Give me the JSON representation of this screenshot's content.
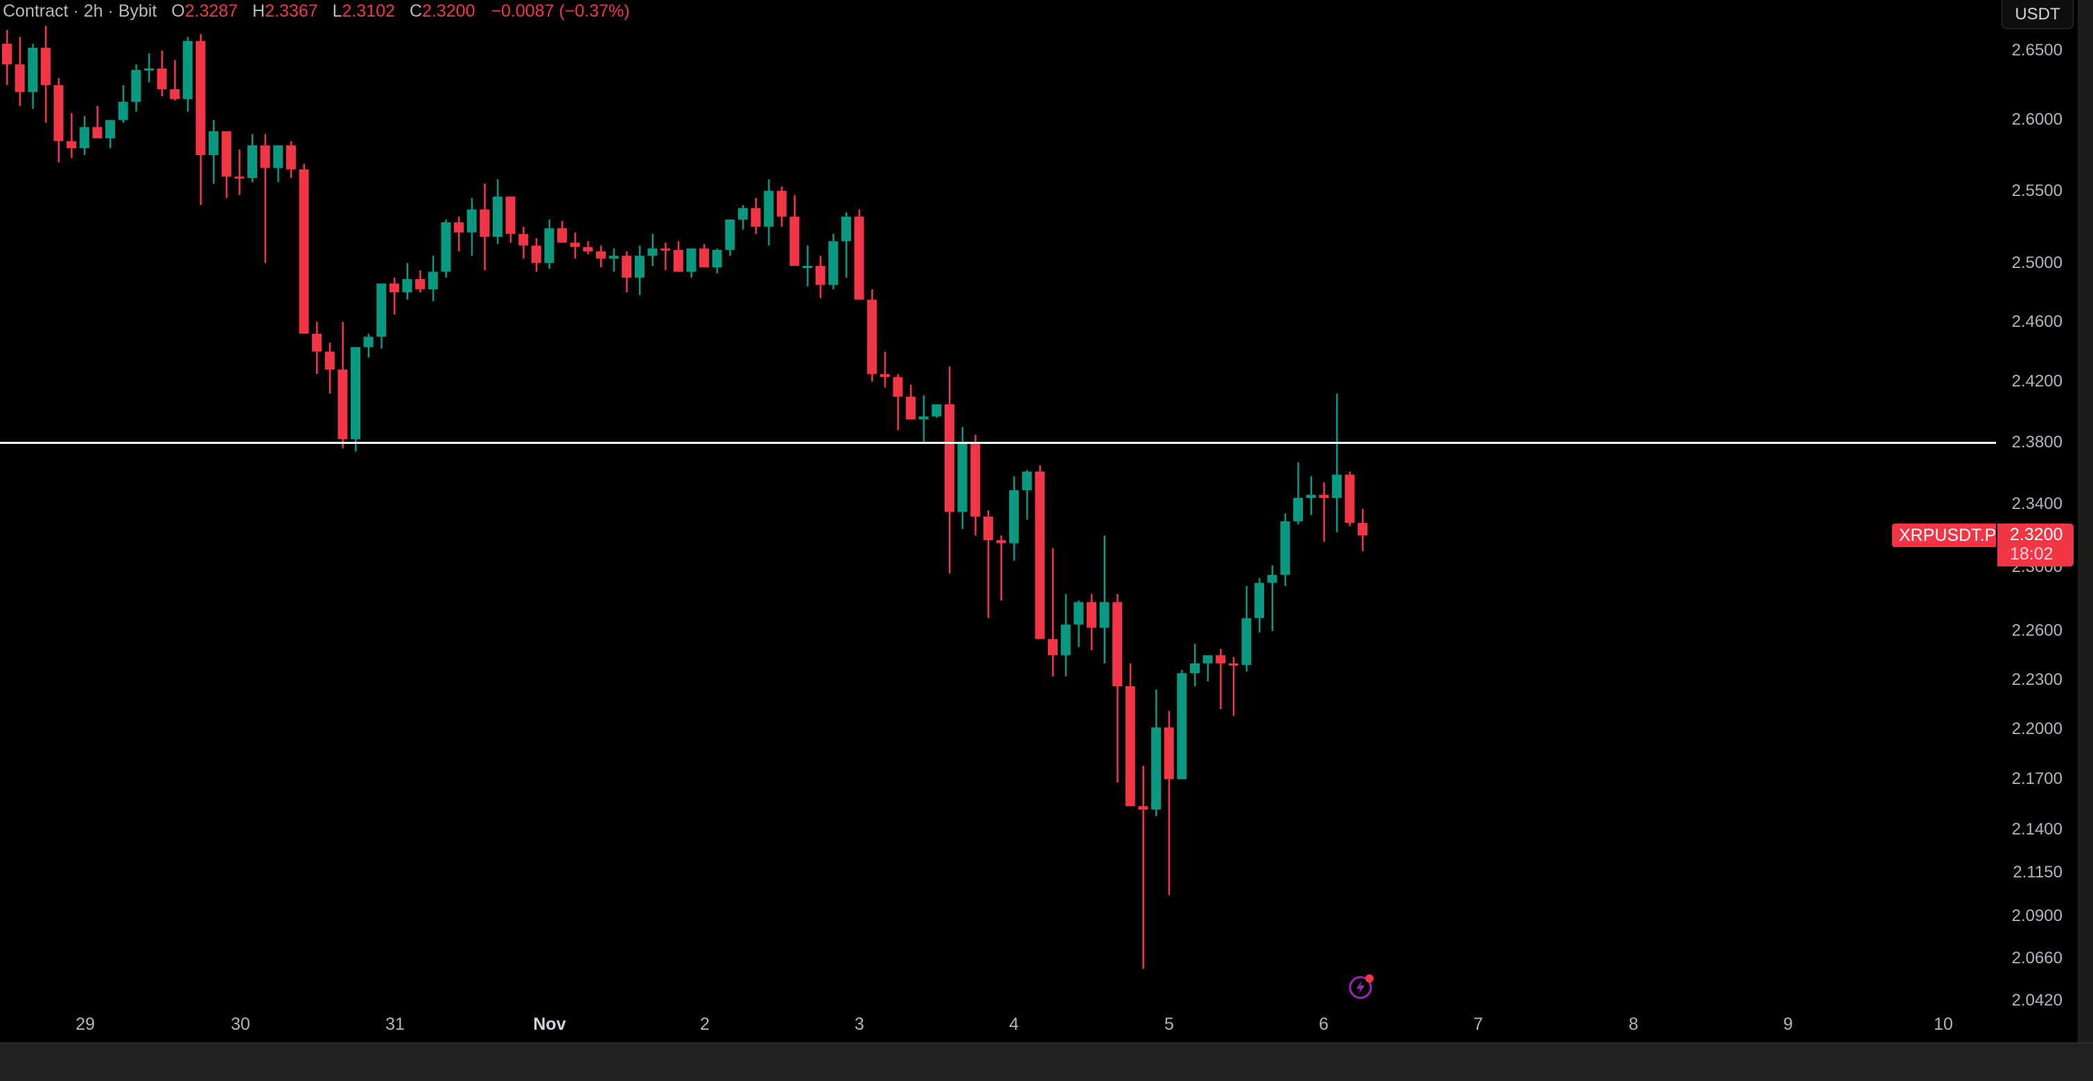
{
  "header": {
    "legend_prefix": "Contract · 2h · Bybit",
    "open_label": "O",
    "open": "2.3287",
    "high_label": "H",
    "high": "2.3367",
    "low_label": "L",
    "low": "2.3102",
    "close_label": "C",
    "close": "2.3200",
    "change": "−0.0087 (−0.37%)"
  },
  "currency_button": "USDT",
  "symbol_label": "XRPUSDT.P",
  "last_price": "2.3200",
  "countdown": "18:02",
  "horizontal_line_price": 2.38,
  "colors": {
    "up": "#089981",
    "down": "#f23645",
    "background": "#000000",
    "axis_text": "#b2b5be",
    "alert_icon": "#9c27b0",
    "hline": "#ffffff"
  },
  "icons": {
    "alert": "lightning-alert-icon"
  },
  "chart_data": {
    "type": "candlestick",
    "title": "XRPUSDT.P · 2h · Bybit",
    "symbol": "XRPUSDT.P",
    "interval": "2h",
    "y_scale": "log",
    "ylim": [
      2.042,
      2.665
    ],
    "y_ticks": [
      "2.6500",
      "2.6000",
      "2.5500",
      "2.5000",
      "2.4600",
      "2.4200",
      "2.3800",
      "2.3400",
      "2.3000",
      "2.2600",
      "2.2300",
      "2.2000",
      "2.1700",
      "2.1400",
      "2.1150",
      "2.0900",
      "2.0660",
      "2.0420"
    ],
    "x_ticks": [
      "29",
      "30",
      "31",
      "Nov",
      "2",
      "3",
      "4",
      "5",
      "6",
      "7",
      "8",
      "9",
      "10"
    ],
    "x_tick_positions": [
      123,
      347,
      570,
      793,
      1017,
      1240,
      1463,
      1687,
      1910,
      2133,
      2357,
      2580,
      2804
    ],
    "first_candle_x": 10,
    "candle_spacing": 18.63,
    "legend": [],
    "annotations": [
      {
        "type": "horizontal_line",
        "price": 2.38
      }
    ],
    "candles": [
      [
        2.655,
        2.665,
        2.625,
        2.64
      ],
      [
        2.64,
        2.66,
        2.61,
        2.62
      ],
      [
        2.62,
        2.655,
        2.608,
        2.652
      ],
      [
        2.652,
        2.668,
        2.598,
        2.625
      ],
      [
        2.625,
        2.63,
        2.57,
        2.585
      ],
      [
        2.585,
        2.605,
        2.573,
        2.58
      ],
      [
        2.58,
        2.603,
        2.575,
        2.595
      ],
      [
        2.595,
        2.61,
        2.588,
        2.587
      ],
      [
        2.587,
        2.6,
        2.58,
        2.6
      ],
      [
        2.6,
        2.625,
        2.598,
        2.613
      ],
      [
        2.613,
        2.64,
        2.606,
        2.636
      ],
      [
        2.636,
        2.648,
        2.627,
        2.637
      ],
      [
        2.637,
        2.65,
        2.617,
        2.622
      ],
      [
        2.622,
        2.643,
        2.614,
        2.615
      ],
      [
        2.615,
        2.66,
        2.606,
        2.657
      ],
      [
        2.657,
        2.662,
        2.54,
        2.575
      ],
      [
        2.575,
        2.6,
        2.555,
        2.592
      ],
      [
        2.592,
        2.592,
        2.545,
        2.56
      ],
      [
        2.56,
        2.579,
        2.547,
        2.559
      ],
      [
        2.559,
        2.59,
        2.556,
        2.582
      ],
      [
        2.582,
        2.59,
        2.5,
        2.566
      ],
      [
        2.566,
        2.58,
        2.556,
        2.582
      ],
      [
        2.582,
        2.585,
        2.559,
        2.565
      ],
      [
        2.565,
        2.569,
        2.5,
        2.452
      ],
      [
        2.452,
        2.46,
        2.425,
        2.44
      ],
      [
        2.44,
        2.446,
        2.412,
        2.428
      ],
      [
        2.428,
        2.46,
        2.376,
        2.382
      ],
      [
        2.382,
        2.432,
        2.374,
        2.443
      ],
      [
        2.443,
        2.452,
        2.436,
        2.45
      ],
      [
        2.45,
        2.486,
        2.442,
        2.486
      ],
      [
        2.486,
        2.49,
        2.465,
        2.48
      ],
      [
        2.48,
        2.5,
        2.475,
        2.489
      ],
      [
        2.489,
        2.495,
        2.48,
        2.482
      ],
      [
        2.482,
        2.505,
        2.474,
        2.494
      ],
      [
        2.494,
        2.53,
        2.49,
        2.528
      ],
      [
        2.528,
        2.532,
        2.508,
        2.521
      ],
      [
        2.521,
        2.545,
        2.505,
        2.537
      ],
      [
        2.537,
        2.555,
        2.495,
        2.518
      ],
      [
        2.518,
        2.558,
        2.513,
        2.546
      ],
      [
        2.546,
        2.546,
        2.514,
        2.52
      ],
      [
        2.52,
        2.525,
        2.503,
        2.512
      ],
      [
        2.512,
        2.517,
        2.494,
        2.5
      ],
      [
        2.5,
        2.53,
        2.496,
        2.524
      ],
      [
        2.524,
        2.529,
        2.514,
        2.514
      ],
      [
        2.514,
        2.521,
        2.503,
        2.511
      ],
      [
        2.511,
        2.515,
        2.506,
        2.508
      ],
      [
        2.508,
        2.512,
        2.497,
        2.503
      ],
      [
        2.503,
        2.51,
        2.494,
        2.505
      ],
      [
        2.505,
        2.508,
        2.48,
        2.49
      ],
      [
        2.49,
        2.512,
        2.478,
        2.505
      ],
      [
        2.505,
        2.52,
        2.498,
        2.51
      ],
      [
        2.51,
        2.514,
        2.495,
        2.509
      ],
      [
        2.509,
        2.515,
        2.498,
        2.494
      ],
      [
        2.494,
        2.51,
        2.49,
        2.51
      ],
      [
        2.51,
        2.513,
        2.497,
        2.497
      ],
      [
        2.497,
        2.51,
        2.493,
        2.509
      ],
      [
        2.509,
        2.527,
        2.505,
        2.53
      ],
      [
        2.53,
        2.54,
        2.523,
        2.538
      ],
      [
        2.538,
        2.545,
        2.52,
        2.525
      ],
      [
        2.525,
        2.558,
        2.512,
        2.55
      ],
      [
        2.55,
        2.553,
        2.525,
        2.532
      ],
      [
        2.532,
        2.547,
        2.518,
        2.498
      ],
      [
        2.498,
        2.512,
        2.484,
        2.498
      ],
      [
        2.498,
        2.505,
        2.476,
        2.485
      ],
      [
        2.485,
        2.52,
        2.482,
        2.515
      ],
      [
        2.515,
        2.535,
        2.49,
        2.532
      ],
      [
        2.532,
        2.537,
        2.478,
        2.475
      ],
      [
        2.475,
        2.482,
        2.42,
        2.425
      ],
      [
        2.425,
        2.44,
        2.416,
        2.423
      ],
      [
        2.423,
        2.425,
        2.388,
        2.41
      ],
      [
        2.41,
        2.418,
        2.401,
        2.395
      ],
      [
        2.395,
        2.411,
        2.38,
        2.397
      ],
      [
        2.397,
        2.402,
        2.396,
        2.405
      ],
      [
        2.405,
        2.43,
        2.296,
        2.335
      ],
      [
        2.335,
        2.39,
        2.324,
        2.38
      ],
      [
        2.38,
        2.385,
        2.32,
        2.332
      ],
      [
        2.332,
        2.336,
        2.268,
        2.317
      ],
      [
        2.317,
        2.32,
        2.279,
        2.315
      ],
      [
        2.315,
        2.358,
        2.304,
        2.349
      ],
      [
        2.349,
        2.362,
        2.33,
        2.361
      ],
      [
        2.361,
        2.365,
        2.267,
        2.255
      ],
      [
        2.255,
        2.312,
        2.232,
        2.245
      ],
      [
        2.245,
        2.283,
        2.232,
        2.264
      ],
      [
        2.264,
        2.279,
        2.25,
        2.278
      ],
      [
        2.278,
        2.283,
        2.248,
        2.262
      ],
      [
        2.262,
        2.32,
        2.24,
        2.278
      ],
      [
        2.278,
        2.283,
        2.168,
        2.226
      ],
      [
        2.226,
        2.24,
        2.167,
        2.154
      ],
      [
        2.154,
        2.178,
        2.06,
        2.152
      ],
      [
        2.152,
        2.224,
        2.148,
        2.201
      ],
      [
        2.201,
        2.211,
        2.102,
        2.17
      ],
      [
        2.17,
        2.236,
        2.17,
        2.234
      ],
      [
        2.234,
        2.252,
        2.226,
        2.24
      ],
      [
        2.24,
        2.245,
        2.229,
        2.245
      ],
      [
        2.245,
        2.249,
        2.212,
        2.24
      ],
      [
        2.24,
        2.244,
        2.208,
        2.239
      ],
      [
        2.239,
        2.288,
        2.235,
        2.268
      ],
      [
        2.268,
        2.293,
        2.259,
        2.29
      ],
      [
        2.29,
        2.301,
        2.26,
        2.295
      ],
      [
        2.295,
        2.334,
        2.288,
        2.329
      ],
      [
        2.329,
        2.367,
        2.327,
        2.344
      ],
      [
        2.344,
        2.358,
        2.333,
        2.346
      ],
      [
        2.346,
        2.354,
        2.316,
        2.344
      ],
      [
        2.344,
        2.412,
        2.322,
        2.359
      ],
      [
        2.359,
        2.361,
        2.326,
        2.328
      ],
      [
        2.328,
        2.337,
        2.31,
        2.32
      ]
    ]
  }
}
